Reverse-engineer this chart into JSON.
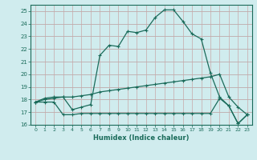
{
  "line1_x": [
    0,
    1,
    2,
    3,
    4,
    5,
    6,
    7,
    8,
    9,
    10,
    11,
    12,
    13,
    14,
    15,
    16,
    17,
    18,
    19,
    20,
    21,
    22,
    23
  ],
  "line1_y": [
    17.8,
    18.1,
    18.2,
    18.2,
    17.2,
    17.4,
    17.6,
    21.5,
    22.3,
    22.2,
    23.4,
    23.3,
    23.5,
    24.5,
    25.1,
    25.1,
    24.2,
    23.2,
    22.8,
    20.1,
    18.2,
    17.5,
    16.1,
    16.8
  ],
  "line2_x": [
    0,
    1,
    2,
    3,
    4,
    5,
    6,
    7,
    8,
    9,
    10,
    11,
    12,
    13,
    14,
    15,
    16,
    17,
    18,
    19,
    20,
    21,
    22,
    23
  ],
  "line2_y": [
    17.8,
    18.0,
    18.1,
    18.2,
    18.2,
    18.3,
    18.4,
    18.6,
    18.7,
    18.8,
    18.9,
    19.0,
    19.1,
    19.2,
    19.3,
    19.4,
    19.5,
    19.6,
    19.7,
    19.8,
    20.0,
    18.2,
    17.4,
    16.8
  ],
  "line3_x": [
    0,
    1,
    2,
    3,
    4,
    5,
    6,
    7,
    8,
    9,
    10,
    11,
    12,
    13,
    14,
    15,
    16,
    17,
    18,
    19,
    20,
    21,
    22,
    23
  ],
  "line3_y": [
    17.8,
    17.8,
    17.8,
    16.8,
    16.8,
    16.9,
    16.9,
    16.9,
    16.9,
    16.9,
    16.9,
    16.9,
    16.9,
    16.9,
    16.9,
    16.9,
    16.9,
    16.9,
    16.9,
    16.9,
    18.1,
    17.5,
    16.1,
    16.8
  ],
  "line_color": "#1a6b5a",
  "bg_color": "#d0ecee",
  "grid_major_color": "#c0dfe2",
  "grid_minor_color": "#e0f0f2",
  "xlabel": "Humidex (Indice chaleur)",
  "ylim": [
    16,
    25.5
  ],
  "xlim": [
    -0.5,
    23.5
  ],
  "yticks": [
    16,
    17,
    18,
    19,
    20,
    21,
    22,
    23,
    24,
    25
  ],
  "xticks": [
    0,
    1,
    2,
    3,
    4,
    5,
    6,
    7,
    8,
    9,
    10,
    11,
    12,
    13,
    14,
    15,
    16,
    17,
    18,
    19,
    20,
    21,
    22,
    23
  ]
}
